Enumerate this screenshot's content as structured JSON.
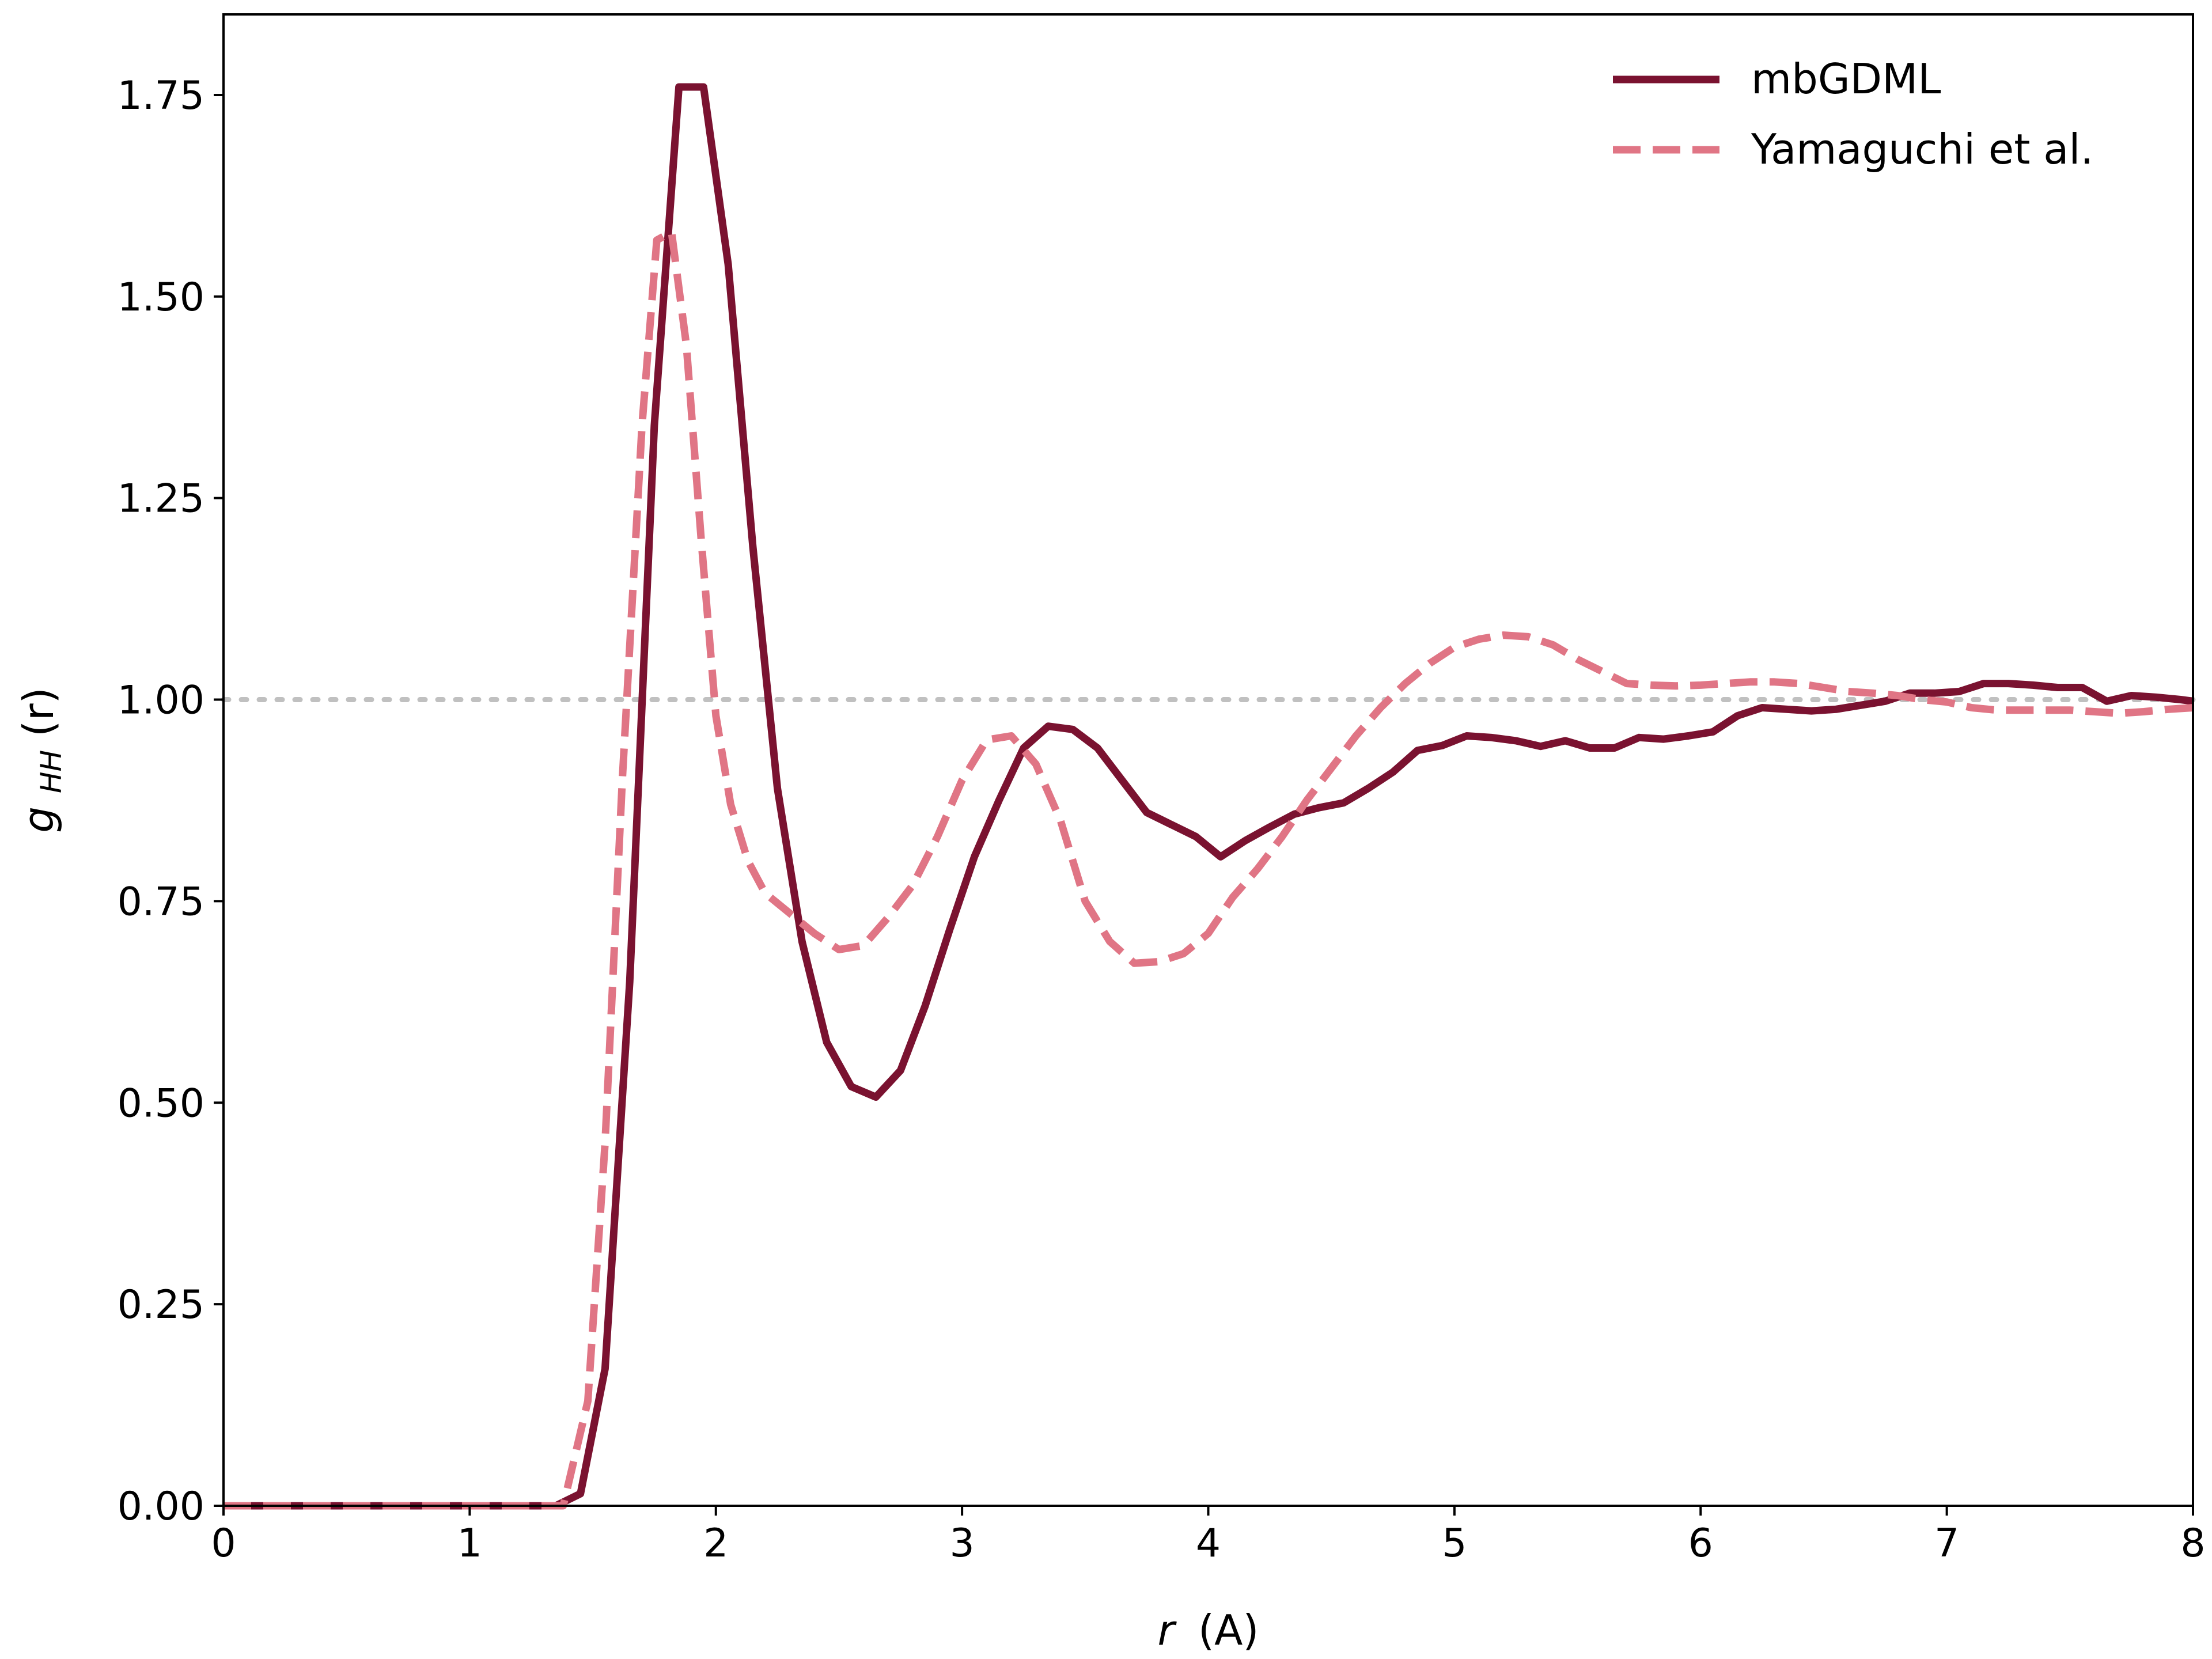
{
  "chart_data": {
    "type": "line",
    "title": "",
    "xlabel_var": "r",
    "xlabel_unit": "(A)",
    "ylabel_var": "g",
    "ylabel_sub": "HH",
    "ylabel_arg": "(r)",
    "xlim": [
      0,
      8
    ],
    "ylim": [
      0,
      1.85
    ],
    "xticks": [
      0,
      1,
      2,
      3,
      4,
      5,
      6,
      7,
      8
    ],
    "xtick_labels": [
      "0",
      "1",
      "2",
      "3",
      "4",
      "5",
      "6",
      "7",
      "8"
    ],
    "yticks": [
      0,
      0.25,
      0.5,
      0.75,
      1.0,
      1.25,
      1.5,
      1.75
    ],
    "ytick_labels": [
      "0.00",
      "0.25",
      "0.50",
      "0.75",
      "1.00",
      "1.25",
      "1.50",
      "1.75"
    ],
    "grid": false,
    "reference_line": {
      "y": 1.0,
      "style": "dotted",
      "color": "#c0c0c0"
    },
    "legend_position": "top-right",
    "series": [
      {
        "name": "mbGDML",
        "style": "solid",
        "color": "#7a1230",
        "x": [
          0.0,
          0.25,
          0.5,
          0.75,
          1.0,
          1.25,
          1.35,
          1.45,
          1.55,
          1.65,
          1.75,
          1.85,
          1.95,
          2.05,
          2.15,
          2.25,
          2.35,
          2.45,
          2.55,
          2.65,
          2.75,
          2.85,
          2.95,
          3.05,
          3.15,
          3.25,
          3.35,
          3.45,
          3.55,
          3.65,
          3.75,
          3.85,
          3.95,
          4.05,
          4.15,
          4.25,
          4.35,
          4.45,
          4.55,
          4.65,
          4.75,
          4.85,
          4.95,
          5.05,
          5.15,
          5.25,
          5.35,
          5.45,
          5.55,
          5.65,
          5.75,
          5.85,
          5.95,
          6.05,
          6.15,
          6.25,
          6.35,
          6.45,
          6.55,
          6.65,
          6.75,
          6.85,
          6.95,
          7.05,
          7.15,
          7.25,
          7.35,
          7.45,
          7.55,
          7.65,
          7.75,
          7.85,
          7.95,
          8.0
        ],
        "y": [
          0.0,
          0.0,
          0.0,
          0.0,
          0.0,
          0.0,
          0.0,
          0.015,
          0.17,
          0.65,
          1.34,
          1.76,
          1.76,
          1.54,
          1.19,
          0.89,
          0.7,
          0.575,
          0.52,
          0.507,
          0.54,
          0.62,
          0.715,
          0.805,
          0.875,
          0.94,
          0.967,
          0.963,
          0.94,
          0.9,
          0.86,
          0.845,
          0.83,
          0.805,
          0.825,
          0.842,
          0.858,
          0.866,
          0.872,
          0.89,
          0.91,
          0.937,
          0.943,
          0.955,
          0.953,
          0.949,
          0.942,
          0.949,
          0.94,
          0.94,
          0.953,
          0.951,
          0.955,
          0.96,
          0.98,
          0.99,
          0.988,
          0.986,
          0.988,
          0.993,
          0.998,
          1.008,
          1.008,
          1.01,
          1.02,
          1.02,
          1.018,
          1.015,
          1.015,
          0.998,
          1.005,
          1.003,
          1.0,
          0.998
        ]
      },
      {
        "name": "Yamaguchi et al.",
        "style": "dashed",
        "color": "#e07585",
        "x": [
          0.0,
          0.25,
          0.5,
          0.75,
          1.0,
          1.25,
          1.38,
          1.48,
          1.55,
          1.62,
          1.7,
          1.76,
          1.82,
          1.88,
          1.94,
          2.0,
          2.06,
          2.13,
          2.2,
          2.3,
          2.4,
          2.5,
          2.6,
          2.7,
          2.8,
          2.9,
          3.0,
          3.1,
          3.2,
          3.3,
          3.4,
          3.5,
          3.6,
          3.7,
          3.8,
          3.9,
          4.0,
          4.1,
          4.2,
          4.3,
          4.4,
          4.5,
          4.6,
          4.7,
          4.8,
          4.9,
          5.0,
          5.1,
          5.2,
          5.3,
          5.4,
          5.5,
          5.6,
          5.7,
          5.8,
          5.9,
          6.0,
          6.1,
          6.2,
          6.3,
          6.4,
          6.5,
          6.6,
          6.7,
          6.8,
          6.9,
          7.0,
          7.1,
          7.2,
          7.3,
          7.4,
          7.5,
          7.6,
          7.7,
          7.8,
          7.9,
          8.0
        ],
        "y": [
          0.0,
          0.0,
          0.0,
          0.0,
          0.0,
          0.0,
          0.0,
          0.13,
          0.45,
          0.9,
          1.34,
          1.57,
          1.58,
          1.44,
          1.2,
          0.98,
          0.87,
          0.8,
          0.76,
          0.735,
          0.71,
          0.69,
          0.695,
          0.73,
          0.77,
          0.83,
          0.9,
          0.95,
          0.955,
          0.92,
          0.85,
          0.75,
          0.7,
          0.673,
          0.675,
          0.685,
          0.71,
          0.755,
          0.79,
          0.83,
          0.875,
          0.915,
          0.955,
          0.99,
          1.02,
          1.045,
          1.065,
          1.075,
          1.08,
          1.078,
          1.068,
          1.05,
          1.035,
          1.02,
          1.018,
          1.017,
          1.018,
          1.02,
          1.022,
          1.022,
          1.02,
          1.015,
          1.01,
          1.008,
          1.005,
          1.0,
          0.997,
          0.99,
          0.987,
          0.987,
          0.987,
          0.987,
          0.985,
          0.983,
          0.985,
          0.988,
          0.99
        ]
      }
    ]
  }
}
